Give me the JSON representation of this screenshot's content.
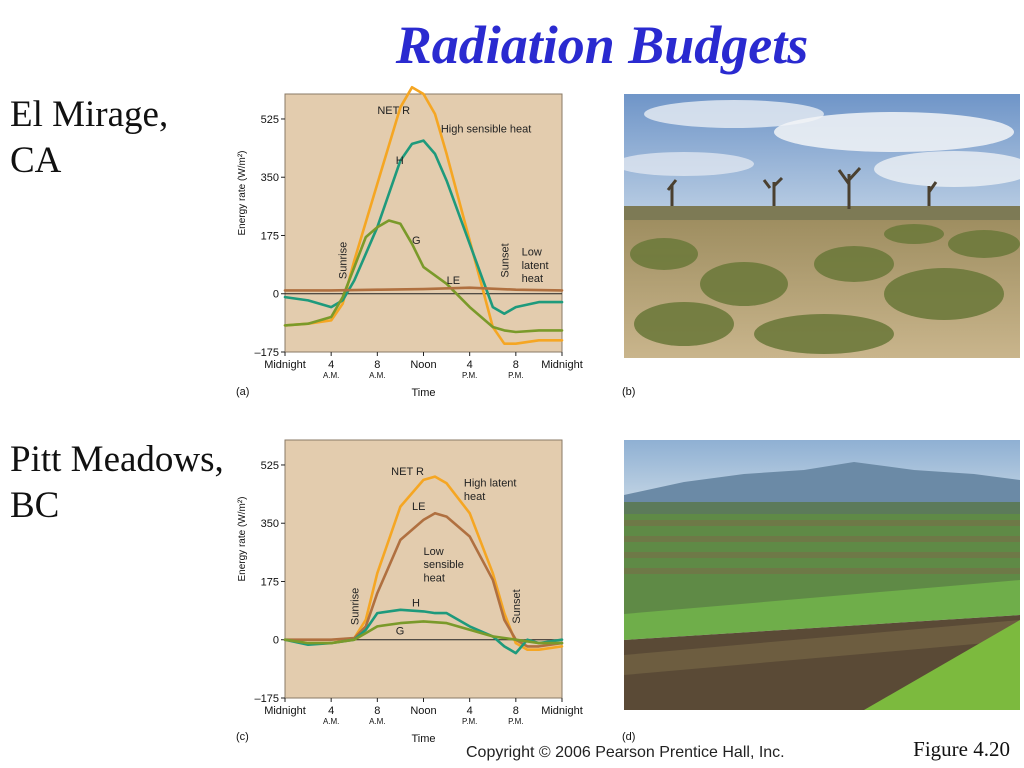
{
  "title": "Radiation Budgets",
  "site_a": {
    "line1": "El Mirage,",
    "line2": "CA"
  },
  "site_c": {
    "line1": "Pitt Meadows,",
    "line2": "BC"
  },
  "panel_labels": {
    "a": "(a)",
    "b": "(b)",
    "c": "(c)",
    "d": "(d)"
  },
  "figure": "Figure  4.20",
  "copyright": "Copyright © 2006 Pearson Prentice Hall, Inc.",
  "colors": {
    "netr": "#f5a623",
    "h": "#1e9a7c",
    "g": "#7a9a2a",
    "le": "#b07040",
    "plot_bg": "#e3ccae",
    "title": "#2a2ad0"
  },
  "chart_data": [
    {
      "type": "line",
      "panel": "(a)",
      "xlabel": "Time",
      "ylabel": "Energy rate (W/m²)",
      "ylim": [
        -175,
        600
      ],
      "xlim": [
        0,
        24
      ],
      "yticks": [
        525,
        350,
        175,
        0,
        -175
      ],
      "ytick_labels": [
        "525",
        "350",
        "175",
        "0",
        "–175"
      ],
      "xticks": [
        {
          "x": 0,
          "label": "Midnight",
          "sub": ""
        },
        {
          "x": 4,
          "label": "4",
          "sub": "A.M."
        },
        {
          "x": 8,
          "label": "8",
          "sub": "A.M."
        },
        {
          "x": 12,
          "label": "Noon",
          "sub": ""
        },
        {
          "x": 16,
          "label": "4",
          "sub": "P.M."
        },
        {
          "x": 20,
          "label": "8",
          "sub": "P.M."
        },
        {
          "x": 24,
          "label": "Midnight",
          "sub": ""
        }
      ],
      "events": [
        {
          "x": 5,
          "label": "Sunrise"
        },
        {
          "x": 19,
          "label": "Sunset"
        }
      ],
      "series": [
        {
          "name": "NET R",
          "color_key": "netr",
          "x": [
            0,
            2,
            4,
            5,
            6,
            8,
            10,
            11,
            12,
            13,
            14,
            16,
            18,
            19,
            20,
            22,
            24
          ],
          "y": [
            -95,
            -90,
            -80,
            -30,
            100,
            330,
            560,
            620,
            600,
            540,
            420,
            160,
            -100,
            -150,
            -150,
            -140,
            -140
          ]
        },
        {
          "name": "H",
          "color_key": "h",
          "x": [
            0,
            2,
            4,
            5,
            6,
            8,
            10,
            11,
            12,
            13,
            14,
            16,
            18,
            19,
            20,
            22,
            24
          ],
          "y": [
            -10,
            -20,
            -40,
            -20,
            40,
            200,
            400,
            450,
            460,
            420,
            340,
            150,
            -40,
            -60,
            -40,
            -25,
            -25
          ]
        },
        {
          "name": "G",
          "color_key": "g",
          "x": [
            0,
            2,
            4,
            5,
            6,
            7,
            8,
            9,
            10,
            11,
            12,
            14,
            16,
            18,
            19,
            20,
            22,
            24
          ],
          "y": [
            -95,
            -90,
            -70,
            -10,
            80,
            170,
            200,
            220,
            210,
            150,
            80,
            30,
            -40,
            -100,
            -110,
            -115,
            -110,
            -110
          ]
        },
        {
          "name": "LE",
          "color_key": "le",
          "x": [
            0,
            4,
            8,
            12,
            16,
            20,
            24
          ],
          "y": [
            10,
            10,
            12,
            14,
            18,
            12,
            10
          ]
        }
      ],
      "annotations": [
        {
          "text": "NET R",
          "x": 8,
          "y": 540
        },
        {
          "text": "High sensible heat",
          "x": 13.5,
          "y": 485
        },
        {
          "text": "H",
          "x": 9.6,
          "y": 390
        },
        {
          "text": "G",
          "x": 11.0,
          "y": 150
        },
        {
          "text": "LE",
          "x": 14.0,
          "y": 30
        },
        {
          "text": "Low",
          "x": 20.5,
          "y": 115
        },
        {
          "text": "latent",
          "x": 20.5,
          "y": 75
        },
        {
          "text": "heat",
          "x": 20.5,
          "y": 35
        }
      ]
    },
    {
      "type": "line",
      "panel": "(c)",
      "xlabel": "Time",
      "ylabel": "Energy rate (W/m²)",
      "ylim": [
        -175,
        600
      ],
      "xlim": [
        0,
        24
      ],
      "yticks": [
        525,
        350,
        175,
        0,
        -175
      ],
      "ytick_labels": [
        "525",
        "350",
        "175",
        "0",
        "–175"
      ],
      "xticks": [
        {
          "x": 0,
          "label": "Midnight",
          "sub": ""
        },
        {
          "x": 4,
          "label": "4",
          "sub": "A.M."
        },
        {
          "x": 8,
          "label": "8",
          "sub": "A.M."
        },
        {
          "x": 12,
          "label": "Noon",
          "sub": ""
        },
        {
          "x": 16,
          "label": "4",
          "sub": "P.M."
        },
        {
          "x": 20,
          "label": "8",
          "sub": "P.M."
        },
        {
          "x": 24,
          "label": "Midnight",
          "sub": ""
        }
      ],
      "events": [
        {
          "x": 6,
          "label": "Sunrise"
        },
        {
          "x": 20,
          "label": "Sunset"
        }
      ],
      "series": [
        {
          "name": "NET R",
          "color_key": "netr",
          "x": [
            0,
            2,
            4,
            6,
            7,
            8,
            10,
            12,
            13,
            14,
            16,
            18,
            19,
            20,
            21,
            22,
            24
          ],
          "y": [
            0,
            -10,
            -10,
            5,
            60,
            200,
            400,
            480,
            490,
            470,
            380,
            200,
            80,
            -10,
            -30,
            -30,
            -20
          ]
        },
        {
          "name": "LE",
          "color_key": "le",
          "x": [
            0,
            2,
            4,
            6,
            7,
            8,
            10,
            12,
            13,
            14,
            16,
            18,
            19,
            20,
            21,
            22,
            24
          ],
          "y": [
            0,
            0,
            0,
            5,
            40,
            140,
            300,
            360,
            380,
            370,
            310,
            180,
            60,
            0,
            -20,
            -20,
            -10
          ]
        },
        {
          "name": "H",
          "color_key": "h",
          "x": [
            0,
            2,
            4,
            6,
            7,
            8,
            10,
            12,
            13,
            14,
            16,
            18,
            19,
            20,
            21,
            22,
            24
          ],
          "y": [
            0,
            -15,
            -10,
            0,
            30,
            80,
            90,
            85,
            80,
            80,
            40,
            10,
            -20,
            -40,
            0,
            -10,
            0
          ]
        },
        {
          "name": "G",
          "color_key": "g",
          "x": [
            0,
            2,
            4,
            6,
            7,
            8,
            10,
            12,
            14,
            16,
            18,
            20,
            22,
            24
          ],
          "y": [
            0,
            -10,
            -10,
            0,
            20,
            40,
            50,
            55,
            50,
            30,
            10,
            0,
            -10,
            -10
          ]
        }
      ],
      "annotations": [
        {
          "text": "NET R",
          "x": 9.2,
          "y": 495
        },
        {
          "text": "High latent",
          "x": 15.5,
          "y": 460
        },
        {
          "text": "heat",
          "x": 15.5,
          "y": 420
        },
        {
          "text": "LE",
          "x": 11.0,
          "y": 390
        },
        {
          "text": "Low",
          "x": 12.0,
          "y": 255
        },
        {
          "text": "sensible",
          "x": 12.0,
          "y": 215
        },
        {
          "text": "heat",
          "x": 12.0,
          "y": 175
        },
        {
          "text": "H",
          "x": 11.0,
          "y": 100
        },
        {
          "text": "G",
          "x": 9.6,
          "y": 15
        }
      ]
    }
  ]
}
